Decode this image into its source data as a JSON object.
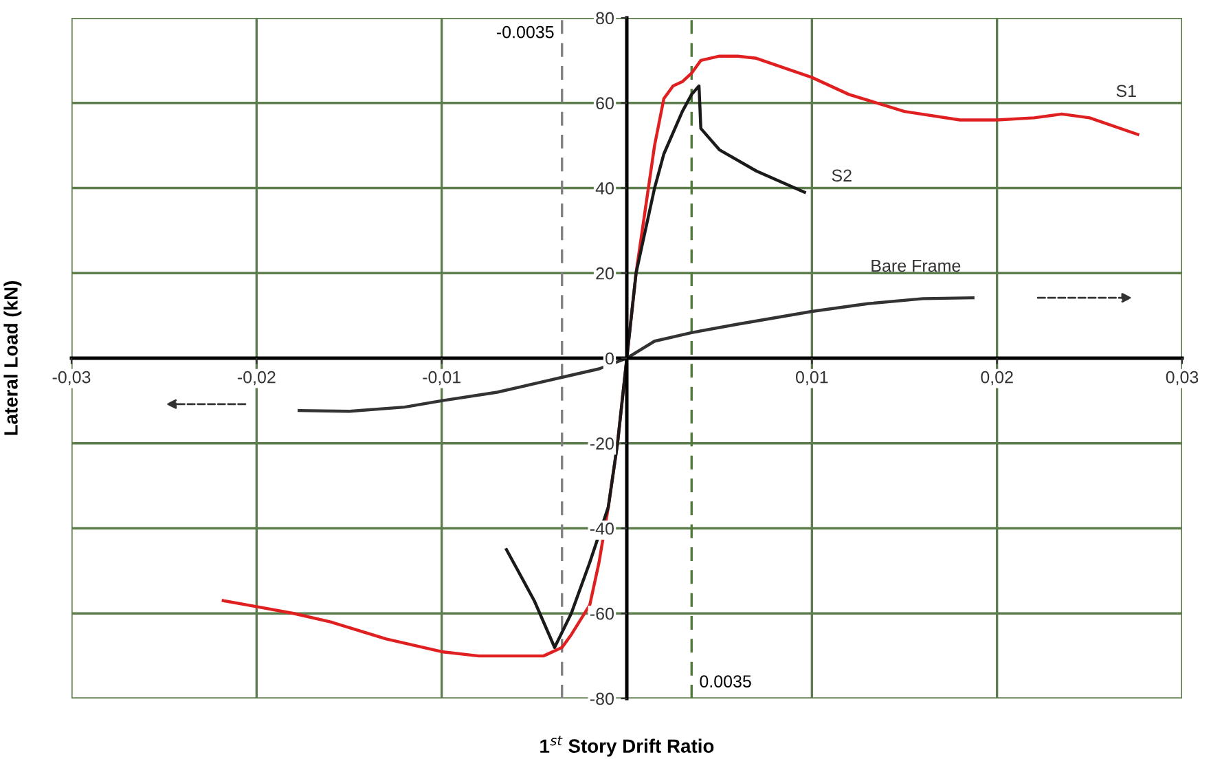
{
  "chart_data": {
    "type": "line",
    "xlabel": "1$^{st}$ Story Drift Ratio",
    "ylabel": "Lateral Load (kN)",
    "xlim": [
      -0.03,
      0.03
    ],
    "ylim": [
      -80,
      80
    ],
    "xticks": [
      {
        "value": -0.03,
        "label": "-0,03"
      },
      {
        "value": -0.02,
        "label": "-0,02"
      },
      {
        "value": -0.01,
        "label": "-0,01"
      },
      {
        "value": 0.01,
        "label": "0,01"
      },
      {
        "value": 0.02,
        "label": "0,02"
      },
      {
        "value": 0.03,
        "label": "0,03"
      }
    ],
    "yticks": [
      -80,
      -60,
      -40,
      -20,
      0,
      20,
      40,
      60,
      80
    ],
    "grid": true,
    "legend": false,
    "marker": "none",
    "line_style": "solid",
    "ref_lines": [
      {
        "axis": "x",
        "value": -0.0035,
        "label": "-0.0035",
        "color": "#7f7f7f",
        "line_style": "dashed"
      },
      {
        "axis": "x",
        "value": 0.0035,
        "label": "0.0035",
        "color": "#4f7a3a",
        "line_style": "dashed"
      }
    ],
    "series": [
      {
        "name": "S1",
        "color": "#e02020",
        "x": [
          -0.0218,
          -0.02,
          -0.018,
          -0.016,
          -0.013,
          -0.01,
          -0.008,
          -0.006,
          -0.0045,
          -0.0035,
          -0.003,
          -0.002,
          -0.0015,
          -0.001,
          -0.0005,
          0,
          0.0005,
          0.001,
          0.0015,
          0.002,
          0.0025,
          0.003,
          0.0035,
          0.004,
          0.005,
          0.006,
          0.007,
          0.008,
          0.01,
          0.012,
          0.015,
          0.018,
          0.02,
          0.022,
          0.0235,
          0.025,
          0.0276
        ],
        "values": [
          -57,
          -58.4,
          -60,
          -62,
          -66,
          -69,
          -70,
          -70,
          -70,
          -68,
          -65,
          -58,
          -48,
          -35,
          -20,
          0,
          20,
          35,
          50,
          61,
          64,
          65,
          67,
          70,
          71,
          71,
          70.5,
          69,
          66,
          62,
          58,
          56,
          56,
          56.5,
          57.4,
          56.5,
          52.6
        ]
      },
      {
        "name": "S2",
        "color": "#1a1a1a",
        "x": [
          -0.0065,
          -0.005,
          -0.0039,
          -0.003,
          -0.002,
          -0.001,
          -0.0005,
          0,
          0.0005,
          0.001,
          0.0015,
          0.002,
          0.003,
          0.0035,
          0.0039,
          0.004,
          0.005,
          0.007,
          0.0096
        ],
        "values": [
          -45,
          -57,
          -68,
          -60,
          -48,
          -35,
          -20,
          0,
          20,
          30,
          40,
          48,
          58,
          62,
          64,
          54,
          49,
          44,
          39
        ]
      },
      {
        "name": "Bare Frame",
        "color": "#333333",
        "x": [
          -0.0177,
          -0.015,
          -0.012,
          -0.01,
          -0.007,
          -0.005,
          -0.003,
          -0.0015,
          0,
          0.0015,
          0.0035,
          0.006,
          0.01,
          0.013,
          0.016,
          0.0187
        ],
        "values": [
          -12.3,
          -12.5,
          -11.5,
          -10,
          -8,
          -6,
          -4,
          -2.5,
          0,
          4,
          6,
          8,
          11,
          12.8,
          14,
          14.2
        ]
      }
    ]
  }
}
